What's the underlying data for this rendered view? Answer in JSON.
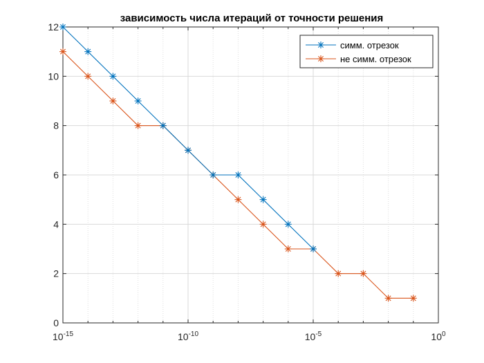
{
  "chart_data": {
    "type": "line",
    "title": "зависимость числа итераций от точности решения",
    "xlabel": "",
    "ylabel": "",
    "xscale": "log",
    "x_tick_labels": [
      "10",
      "10",
      "10",
      "10"
    ],
    "x_tick_exponents": [
      "-15",
      "-10",
      "-5",
      "0"
    ],
    "x_tick_values": [
      1e-15,
      1e-10,
      1e-05,
      1
    ],
    "y_tick_labels": [
      "0",
      "2",
      "4",
      "6",
      "8",
      "10",
      "12"
    ],
    "xlim": [
      1e-15,
      1
    ],
    "ylim": [
      0,
      12
    ],
    "grid": true,
    "legend_position": "top-right",
    "marker": "asterisk",
    "x": [
      1e-15,
      1e-14,
      1e-13,
      1e-12,
      1e-11,
      1e-10,
      1e-09,
      1e-08,
      1e-07,
      1e-06,
      1e-05,
      0.0001,
      0.001,
      0.01,
      0.1
    ],
    "series": [
      {
        "name": "симм. отрезок",
        "color": "#0072bd",
        "values": [
          12,
          11,
          10,
          9,
          8,
          7,
          6,
          6,
          5,
          4,
          3,
          null,
          null,
          null,
          null
        ]
      },
      {
        "name": "не симм. отрезок",
        "color": "#d95319",
        "values": [
          11,
          10,
          9,
          8,
          8,
          7,
          6,
          5,
          4,
          3,
          3,
          2,
          2,
          1,
          1
        ]
      }
    ]
  }
}
